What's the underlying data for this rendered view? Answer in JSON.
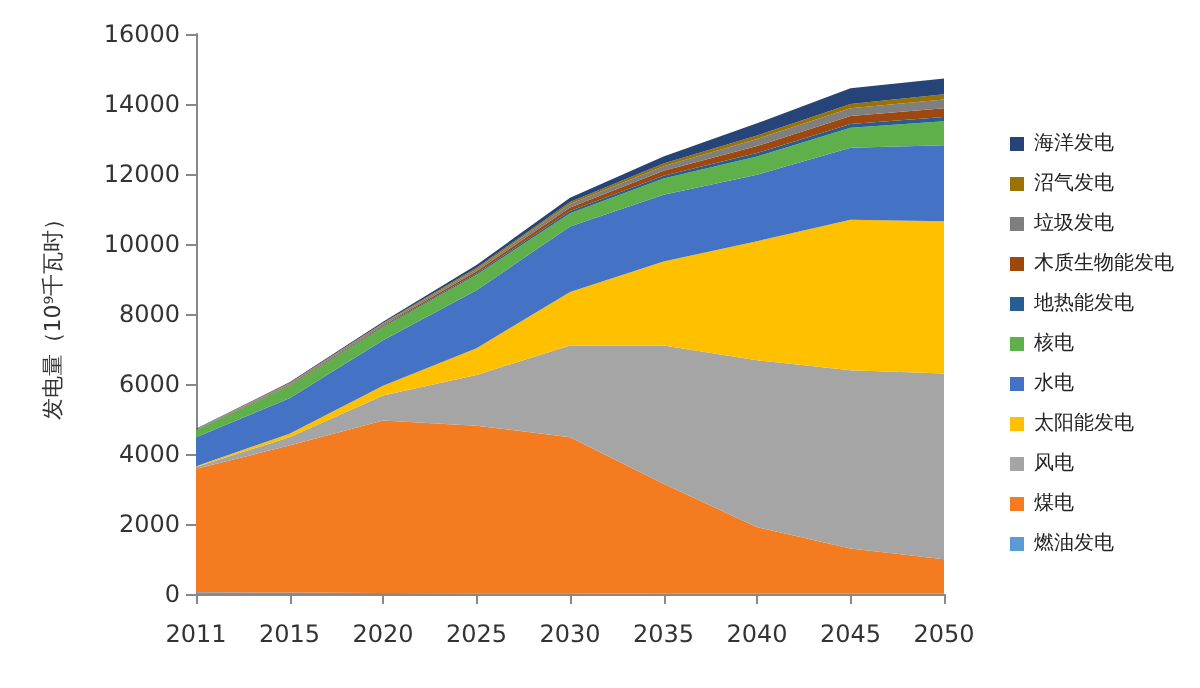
{
  "chart_data": {
    "type": "area",
    "stacked": true,
    "ylabel": "发电量（10⁹千瓦时）",
    "categories": [
      "2011",
      "2015",
      "2020",
      "2025",
      "2030",
      "2035",
      "2040",
      "2045",
      "2050"
    ],
    "ylim": [
      0,
      16000
    ],
    "yticks": [
      0,
      2000,
      4000,
      6000,
      8000,
      10000,
      12000,
      14000,
      16000
    ],
    "grid": false,
    "legend": "right",
    "series": [
      {
        "name": "燃油发电",
        "color": "#5b9bd5",
        "values": [
          50,
          40,
          30,
          20,
          20,
          10,
          10,
          10,
          10
        ]
      },
      {
        "name": "煤电",
        "color": "#f47b20",
        "values": [
          3530,
          4200,
          4930,
          4790,
          4460,
          3140,
          1900,
          1290,
          980
        ]
      },
      {
        "name": "风电",
        "color": "#a5a5a5",
        "values": [
          50,
          240,
          710,
          1450,
          2620,
          3950,
          4770,
          5090,
          5310
        ]
      },
      {
        "name": "太阳能发电",
        "color": "#ffc000",
        "values": [
          20,
          100,
          280,
          760,
          1530,
          2400,
          3400,
          4300,
          4350
        ]
      },
      {
        "name": "水电",
        "color": "#4472c4",
        "values": [
          830,
          1010,
          1300,
          1660,
          1870,
          1910,
          1900,
          2060,
          2170
        ]
      },
      {
        "name": "核电",
        "color": "#5fb04a",
        "values": [
          200,
          360,
          380,
          440,
          380,
          460,
          520,
          570,
          690
        ]
      },
      {
        "name": "地热能发电",
        "color": "#255e91",
        "values": [
          5,
          10,
          20,
          40,
          60,
          80,
          100,
          110,
          120
        ]
      },
      {
        "name": "木质生物能发电",
        "color": "#9e480e",
        "values": [
          10,
          20,
          30,
          60,
          100,
          140,
          200,
          230,
          250
        ]
      },
      {
        "name": "垃圾发电",
        "color": "#7f7f7f",
        "values": [
          10,
          30,
          40,
          60,
          100,
          130,
          200,
          220,
          250
        ]
      },
      {
        "name": "沼气发电",
        "color": "#997300",
        "values": [
          5,
          20,
          20,
          40,
          60,
          80,
          100,
          120,
          150
        ]
      },
      {
        "name": "海洋发电",
        "color": "#264478",
        "values": [
          10,
          20,
          40,
          80,
          120,
          200,
          350,
          450,
          450
        ]
      }
    ]
  }
}
